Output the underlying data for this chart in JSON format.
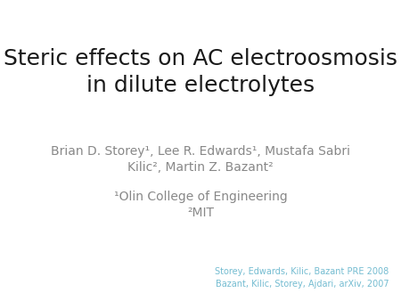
{
  "background_color": "#ffffff",
  "title_line1": "Steric effects on AC electroosmosis",
  "title_line2": "in dilute electrolytes",
  "title_fontsize": 18,
  "title_color": "#1a1a1a",
  "authors_line1": "Brian D. Storey¹, Lee R. Edwards¹, Mustafa Sabri",
  "authors_line2": "Kilic², Martin Z. Bazant²",
  "authors_fontsize": 10,
  "authors_color": "#888888",
  "affil_line1": "¹Olin College of Engineering",
  "affil_line2": "²MIT",
  "affil_fontsize": 10,
  "affil_color": "#888888",
  "ref_line1": "Storey, Edwards, Kilic, Bazant PRE 2008",
  "ref_line2": "Bazant, Kilic, Storey, Ajdari, arXiv, 2007",
  "ref_fontsize": 7,
  "ref_color": "#74bcd1"
}
